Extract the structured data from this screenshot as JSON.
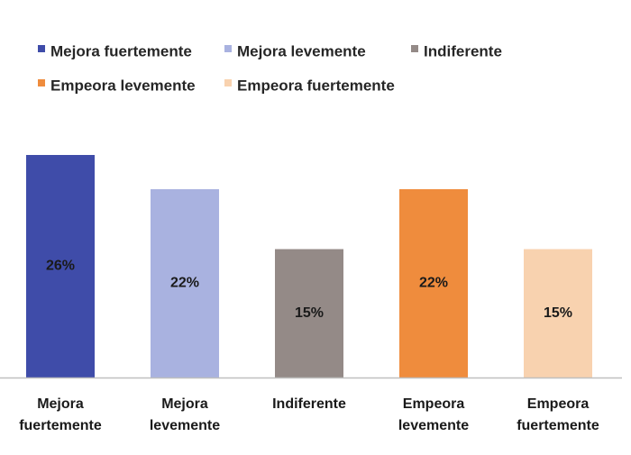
{
  "chart_data": {
    "type": "bar",
    "categories": [
      "Mejora fuertemente",
      "Mejora levemente",
      "Indiferente",
      "Empeora levemente",
      "Empeora fuertemente"
    ],
    "category_label_lines": [
      [
        "Mejora",
        "fuertemente"
      ],
      [
        "Mejora",
        "levemente"
      ],
      [
        "Indiferente"
      ],
      [
        "Empeora",
        "levemente"
      ],
      [
        "Empeora",
        "fuertemente"
      ]
    ],
    "values": [
      26,
      22,
      15,
      22,
      15
    ],
    "value_labels": [
      "26%",
      "22%",
      "15%",
      "22%",
      "15%"
    ],
    "colors": [
      "#3f4ca9",
      "#a9b2e0",
      "#948a87",
      "#ef8c3d",
      "#f8d2af"
    ],
    "legend": [
      {
        "label": "Mejora fuertemente",
        "color": "#3f4ca9"
      },
      {
        "label": "Mejora levemente",
        "color": "#a9b2e0"
      },
      {
        "label": "Indiferente",
        "color": "#948a87"
      },
      {
        "label": "Empeora levemente",
        "color": "#ef8c3d"
      },
      {
        "label": "Empeora fuertemente",
        "color": "#f8d2af"
      }
    ],
    "legend_position": "top-left",
    "title": "",
    "xlabel": "",
    "ylabel": "",
    "ylim": [
      0,
      26
    ],
    "grid": false,
    "axis_color": "#bfbfbf"
  }
}
